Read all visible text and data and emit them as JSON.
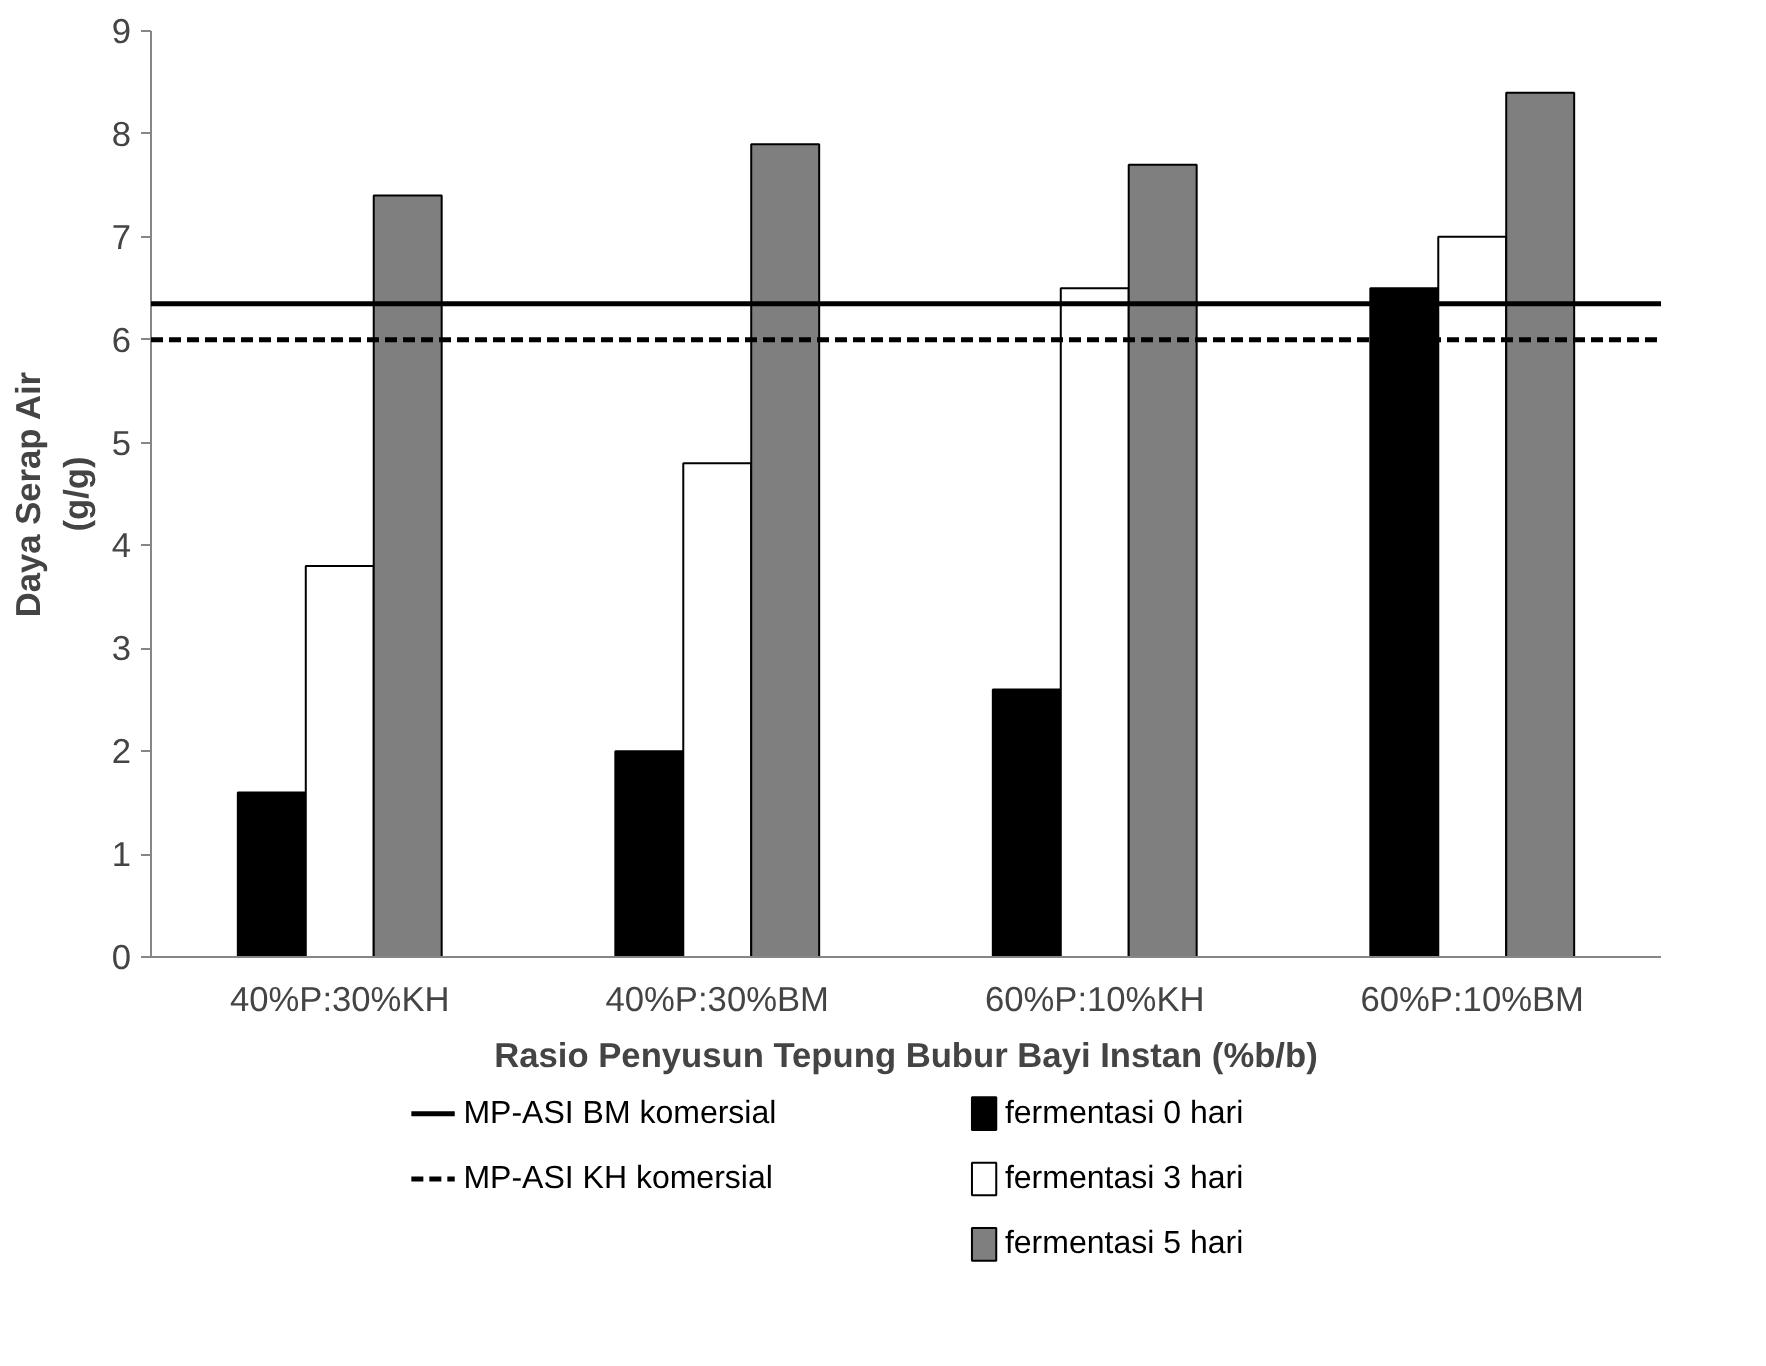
{
  "chart_data": {
    "type": "bar",
    "xlabel": "Rasio Penyusun Tepung Bubur Bayi Instan (%b/b)",
    "ylabel": "Daya Serap Air\n(g/g)",
    "categories": [
      "40%P:30%KH",
      "40%P:30%BM",
      "60%P:10%KH",
      "60%P:10%BM"
    ],
    "series": [
      {
        "name": "fermentasi 0 hari",
        "color": "#000000",
        "values": [
          1.6,
          2.0,
          2.6,
          6.5
        ]
      },
      {
        "name": "fermentasi 3 hari",
        "color": "#ffffff",
        "values": [
          3.8,
          4.8,
          6.5,
          7.0
        ]
      },
      {
        "name": "fermentasi 5 hari",
        "color": "#7f7f7f",
        "values": [
          7.4,
          7.9,
          7.7,
          8.4
        ]
      }
    ],
    "ylim": [
      0,
      9
    ],
    "yticks": [
      0,
      1,
      2,
      3,
      4,
      5,
      6,
      7,
      8,
      9
    ],
    "ref_lines": [
      {
        "axis": "y",
        "value": 6.35,
        "label": "MP-ASI BM komersial",
        "color": "#000000",
        "line_style": "solid"
      },
      {
        "axis": "y",
        "value": 6.0,
        "label": "MP-ASI KH komersial",
        "color": "#000000",
        "line_style": "dashed"
      }
    ],
    "grid": false,
    "legend": "bottom"
  }
}
